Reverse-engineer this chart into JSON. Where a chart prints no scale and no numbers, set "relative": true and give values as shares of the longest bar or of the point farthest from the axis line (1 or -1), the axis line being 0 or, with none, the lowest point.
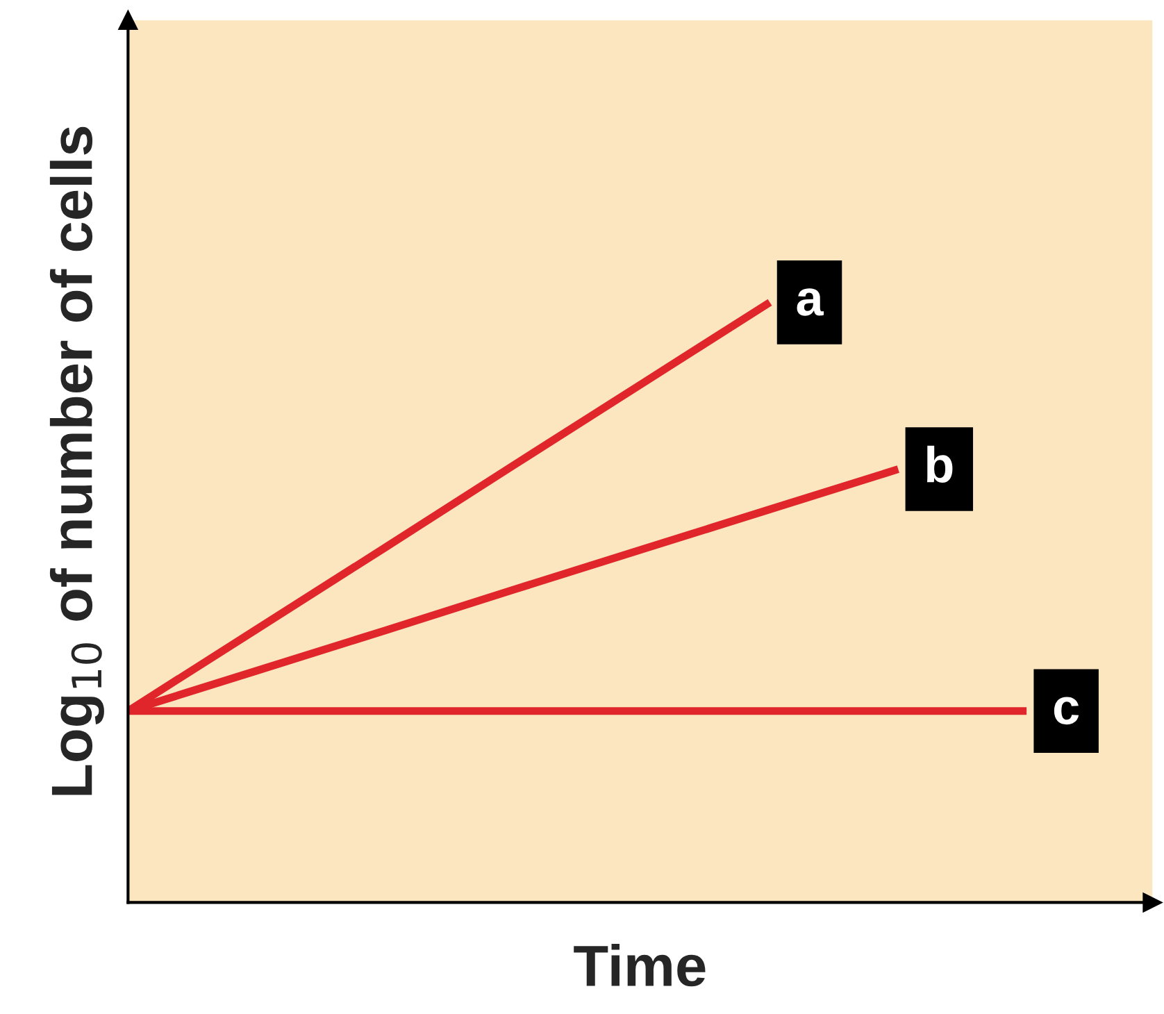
{
  "chart_data": {
    "type": "line",
    "relative": true,
    "xlabel": "Time",
    "ylabel": "Log$_{10}$ of number of cells",
    "categories": [
      null,
      null,
      null,
      null,
      null,
      null,
      null,
      null
    ],
    "series": [
      {
        "name": "a",
        "color": "#e0262b",
        "values": [
          0.319,
          0.455,
          0.591,
          0.728,
          0.864,
          1.0,
          null,
          null
        ]
      },
      {
        "name": "b",
        "color": "#e0262b",
        "values": [
          0.319,
          0.386,
          0.453,
          0.521,
          0.588,
          0.655,
          0.722,
          null
        ]
      },
      {
        "name": "c",
        "color": "#e0262b",
        "values": [
          0.319,
          0.319,
          0.319,
          0.319,
          0.319,
          0.319,
          0.319,
          0.319
        ]
      }
    ],
    "legend": false,
    "marker": "none",
    "line_style": "solid"
  }
}
